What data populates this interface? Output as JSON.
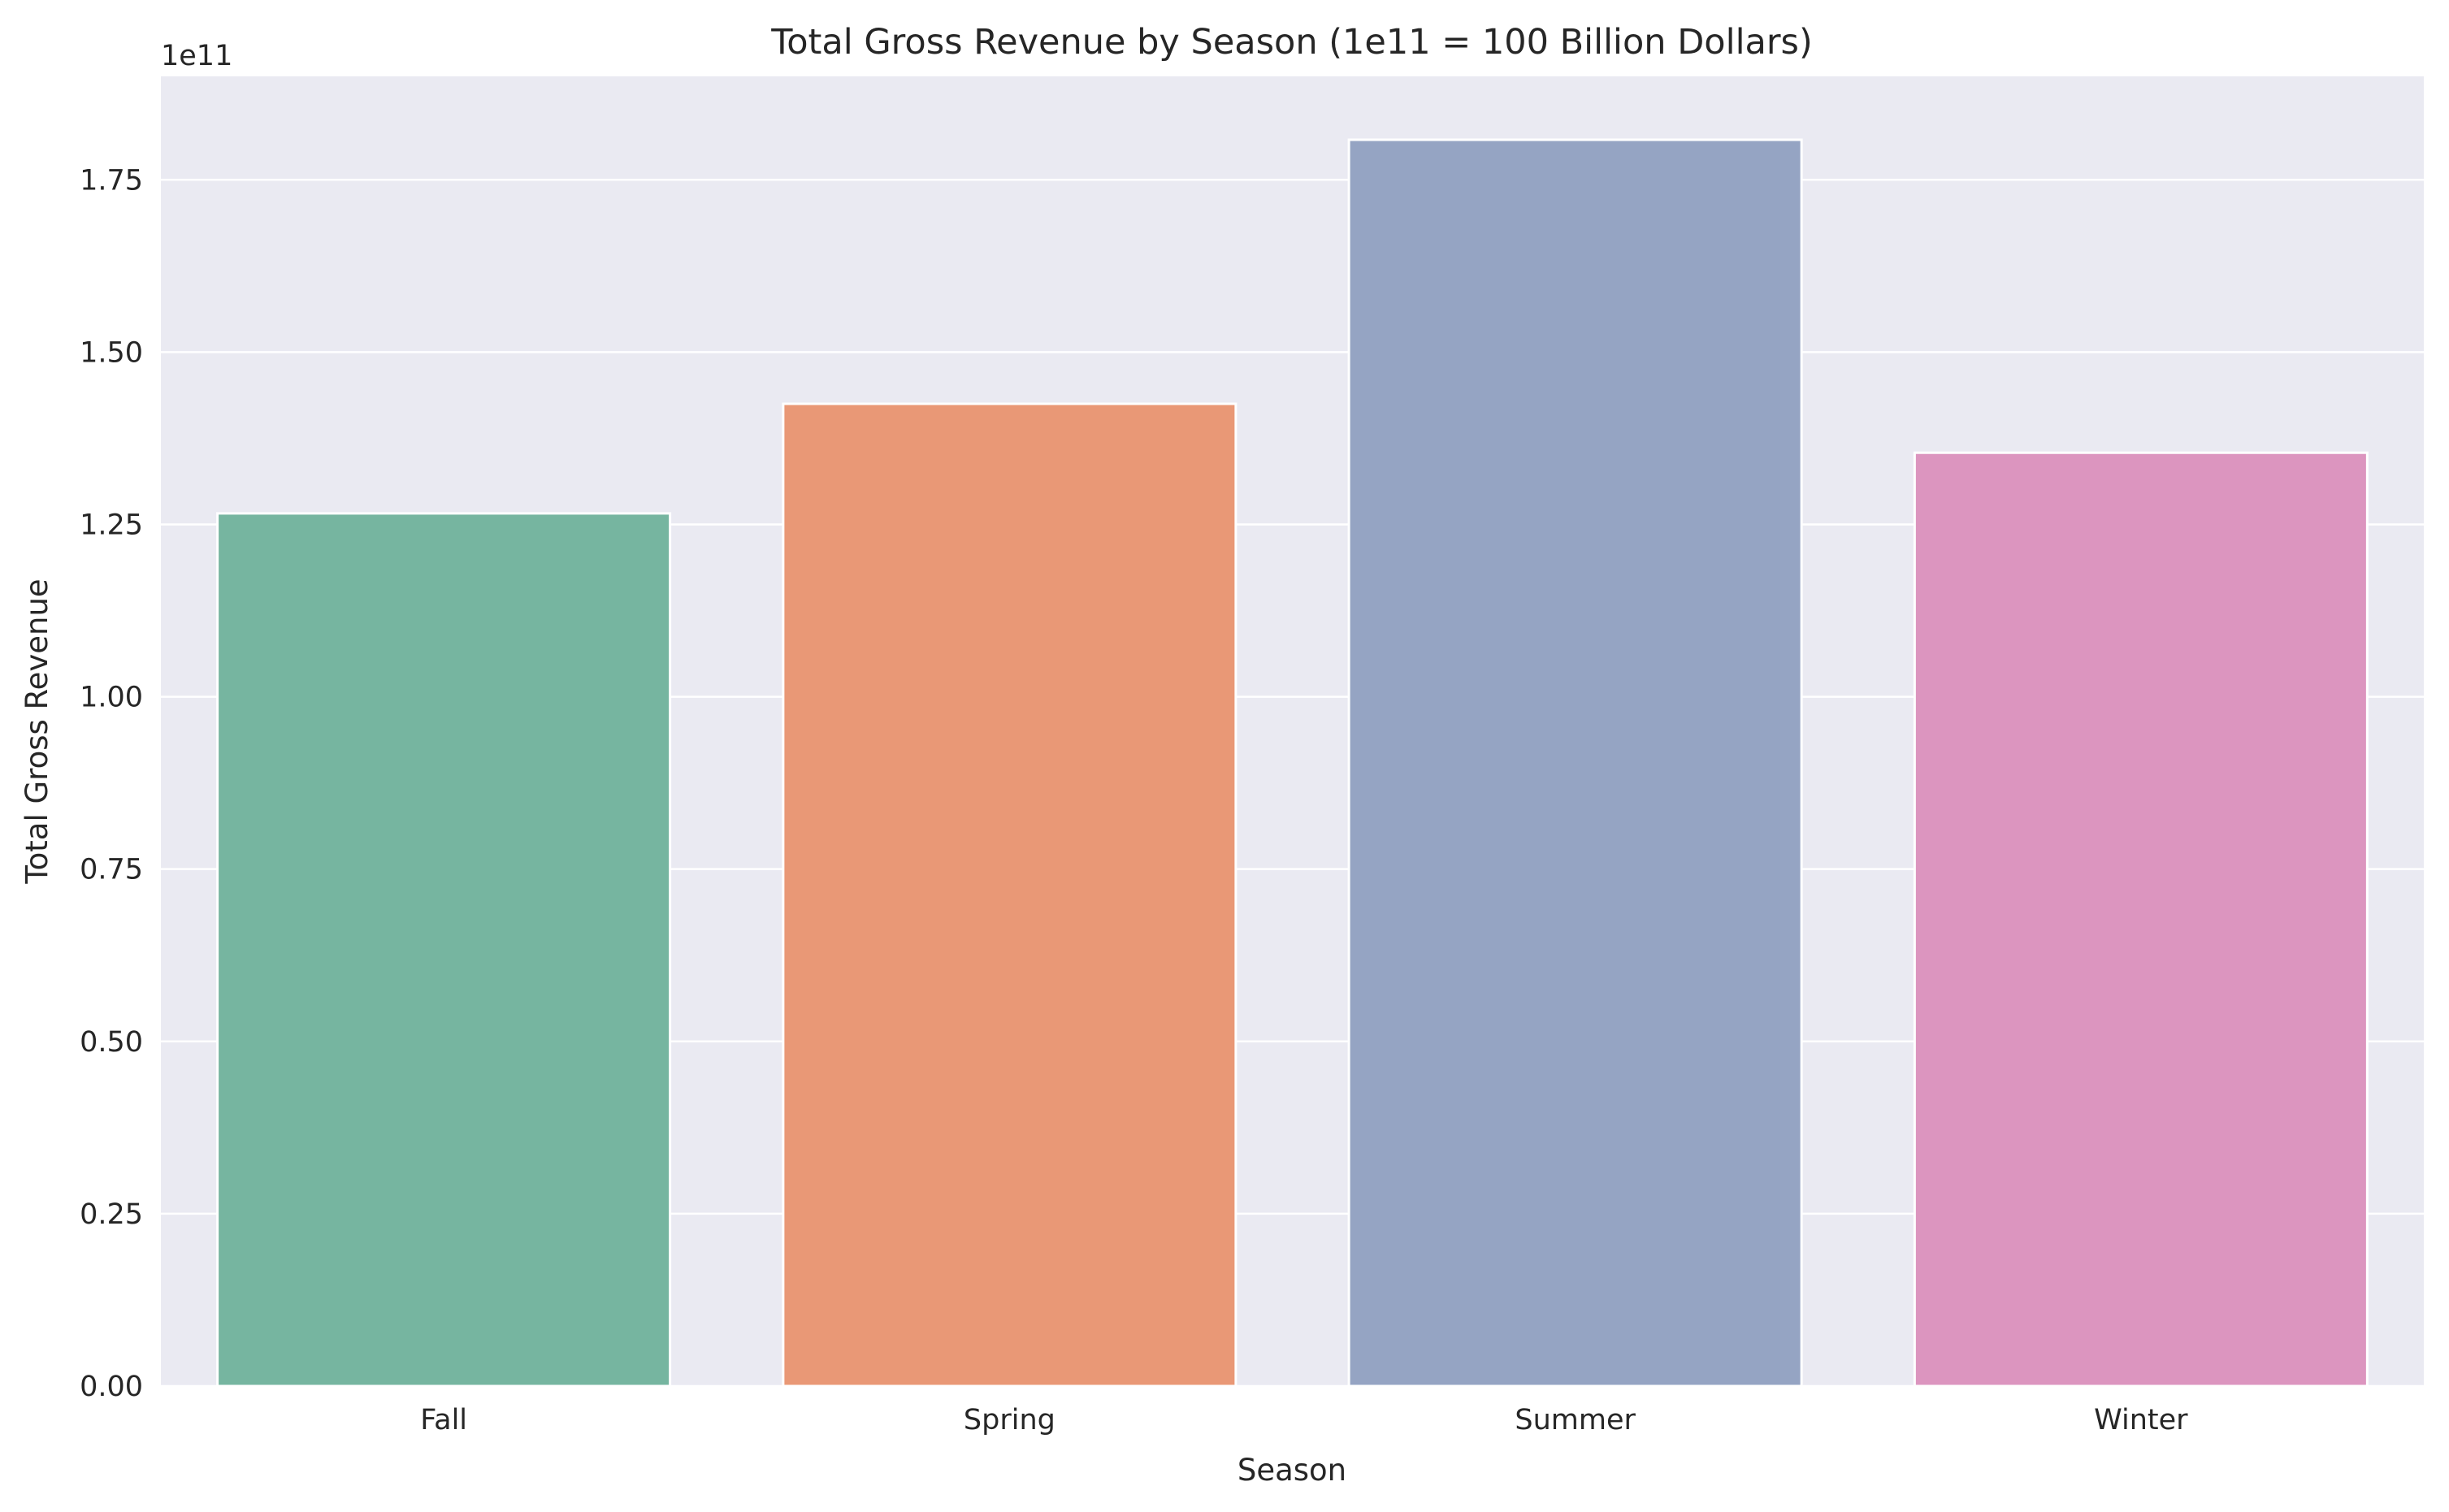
{
  "chart_data": {
    "type": "bar",
    "title": "Total Gross Revenue by Season (1e11 = 100 Billion Dollars)",
    "xlabel": "Season",
    "ylabel": "Total Gross Revenue",
    "y_offset_label": "1e11",
    "categories": [
      "Fall",
      "Spring",
      "Summer",
      "Winter"
    ],
    "values": [
      126600000000,
      142500000000,
      180800000000,
      135400000000
    ],
    "ylim": [
      0,
      190000000000
    ],
    "yticks": [
      0,
      25000000000,
      50000000000,
      75000000000,
      100000000000,
      125000000000,
      150000000000,
      175000000000
    ],
    "ytick_labels": [
      "0.00",
      "0.25",
      "0.50",
      "0.75",
      "1.00",
      "1.25",
      "1.50",
      "1.75"
    ],
    "grid": true,
    "legend": "none",
    "colors": [
      "#76b5a0",
      "#e99876",
      "#95a4c3",
      "#dc95bf"
    ],
    "plot_background": "#eaeaf2",
    "gridline_color": "#ffffff"
  }
}
